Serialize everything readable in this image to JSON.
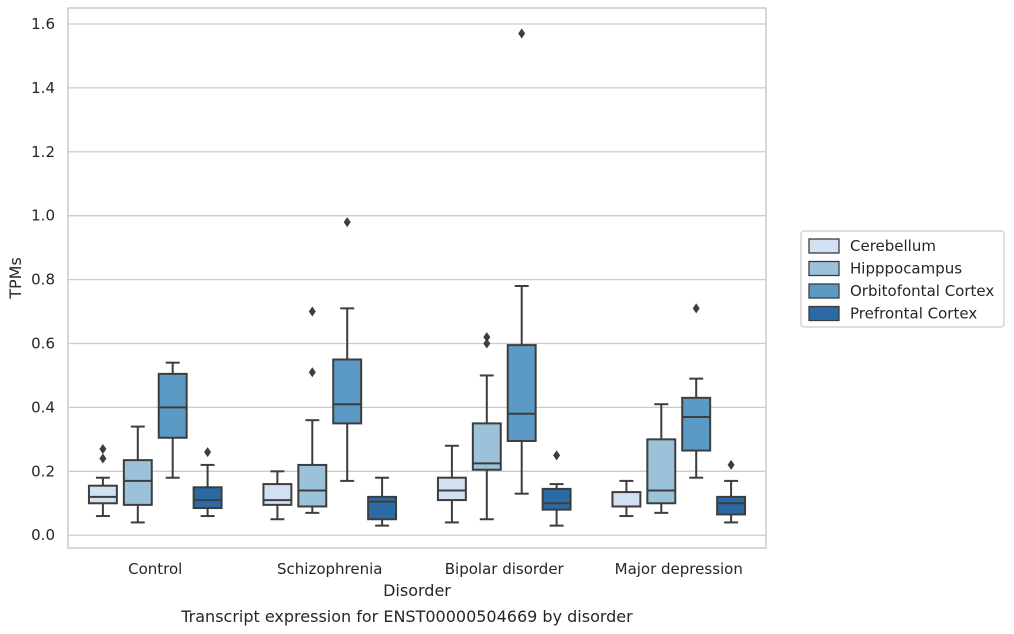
{
  "chart_data": {
    "type": "box",
    "caption": "Transcript expression for ENST00000504669 by disorder",
    "xlabel": "Disorder",
    "ylabel": "TPMs",
    "ylim": [
      -0.04,
      1.65
    ],
    "yticks": [
      0.0,
      0.2,
      0.4,
      0.6,
      0.8,
      1.0,
      1.2,
      1.4,
      1.6
    ],
    "grid": "horizontal",
    "legend_position": "right",
    "categories": [
      "Control",
      "Schizophrenia",
      "Bipolar disorder",
      "Major depression"
    ],
    "series": [
      {
        "name": "Cerebellum",
        "color": "#d2e1f1",
        "boxes": [
          {
            "whislo": 0.06,
            "q1": 0.1,
            "med": 0.12,
            "q3": 0.155,
            "whishi": 0.18,
            "fliers": [
              0.24,
              0.27
            ]
          },
          {
            "whislo": 0.05,
            "q1": 0.095,
            "med": 0.11,
            "q3": 0.16,
            "whishi": 0.2,
            "fliers": []
          },
          {
            "whislo": 0.04,
            "q1": 0.11,
            "med": 0.14,
            "q3": 0.18,
            "whishi": 0.28,
            "fliers": []
          },
          {
            "whislo": 0.06,
            "q1": 0.09,
            "med": 0.09,
            "q3": 0.135,
            "whishi": 0.17,
            "fliers": []
          }
        ]
      },
      {
        "name": "Hipppocampus",
        "color": "#9cc2da",
        "boxes": [
          {
            "whislo": 0.04,
            "q1": 0.095,
            "med": 0.17,
            "q3": 0.235,
            "whishi": 0.34,
            "fliers": []
          },
          {
            "whislo": 0.07,
            "q1": 0.09,
            "med": 0.14,
            "q3": 0.22,
            "whishi": 0.36,
            "fliers": [
              0.51,
              0.7
            ]
          },
          {
            "whislo": 0.05,
            "q1": 0.205,
            "med": 0.225,
            "q3": 0.35,
            "whishi": 0.5,
            "fliers": [
              0.6,
              0.62
            ]
          },
          {
            "whislo": 0.07,
            "q1": 0.1,
            "med": 0.14,
            "q3": 0.3,
            "whishi": 0.41,
            "fliers": []
          }
        ]
      },
      {
        "name": "Orbitofontal Cortex",
        "color": "#5b9ac5",
        "boxes": [
          {
            "whislo": 0.18,
            "q1": 0.305,
            "med": 0.4,
            "q3": 0.505,
            "whishi": 0.54,
            "fliers": []
          },
          {
            "whislo": 0.17,
            "q1": 0.35,
            "med": 0.41,
            "q3": 0.55,
            "whishi": 0.71,
            "fliers": [
              0.98
            ]
          },
          {
            "whislo": 0.13,
            "q1": 0.295,
            "med": 0.38,
            "q3": 0.595,
            "whishi": 0.78,
            "fliers": [
              1.57
            ]
          },
          {
            "whislo": 0.18,
            "q1": 0.265,
            "med": 0.37,
            "q3": 0.43,
            "whishi": 0.49,
            "fliers": [
              0.71
            ]
          }
        ]
      },
      {
        "name": "Prefrontal Cortex",
        "color": "#2c6aa5",
        "boxes": [
          {
            "whislo": 0.06,
            "q1": 0.085,
            "med": 0.11,
            "q3": 0.15,
            "whishi": 0.22,
            "fliers": [
              0.26
            ]
          },
          {
            "whislo": 0.03,
            "q1": 0.05,
            "med": 0.105,
            "q3": 0.12,
            "whishi": 0.18,
            "fliers": []
          },
          {
            "whislo": 0.03,
            "q1": 0.08,
            "med": 0.1,
            "q3": 0.145,
            "whishi": 0.16,
            "fliers": [
              0.25
            ]
          },
          {
            "whislo": 0.04,
            "q1": 0.065,
            "med": 0.1,
            "q3": 0.12,
            "whishi": 0.17,
            "fliers": [
              0.22
            ]
          }
        ]
      }
    ]
  }
}
